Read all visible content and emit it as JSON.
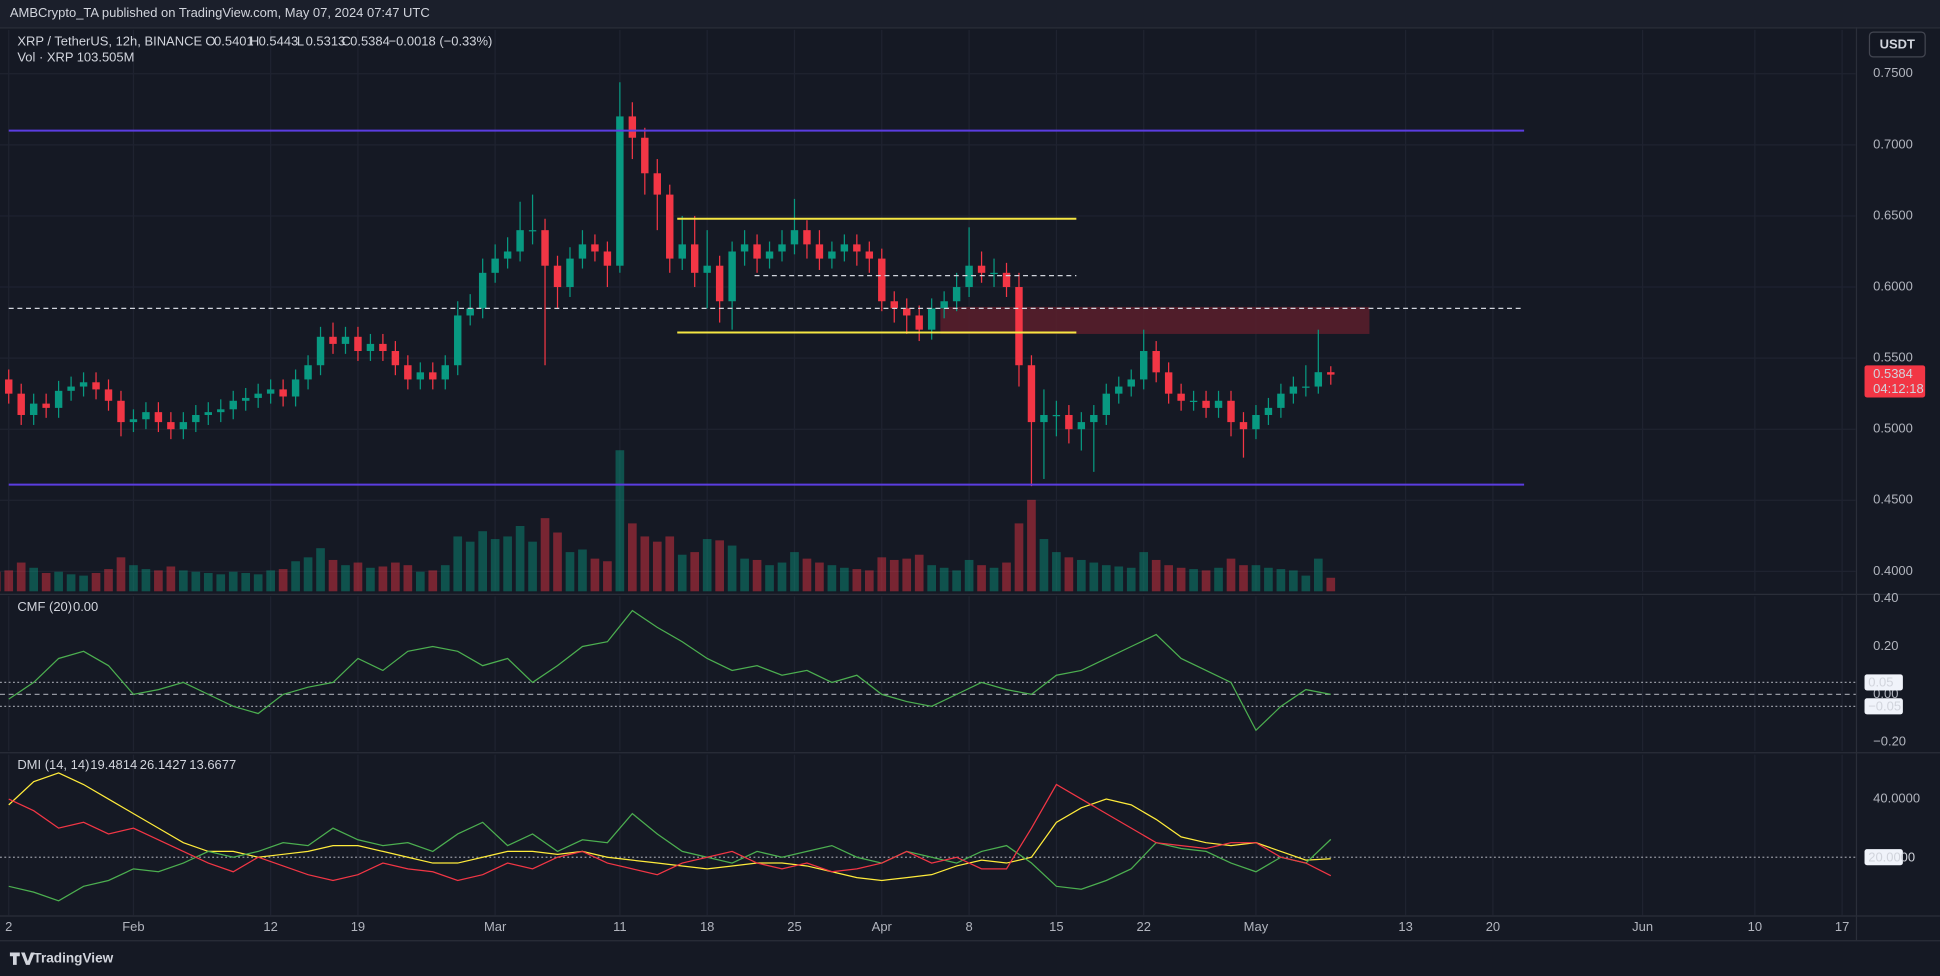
{
  "header": {
    "published": "AMBCrypto_TA published on TradingView.com, May 07, 2024 07:47 UTC",
    "currency": "USDT"
  },
  "footer": {
    "brand": "TradingView"
  },
  "chart_data": [
    {
      "type": "candlestick",
      "title": "XRP / TetherUS, 12h, BINANCE",
      "ohlc_labels": [
        "O",
        "H",
        "L",
        "C"
      ],
      "change_label": "−0.0018 (−0.33%)",
      "countdown": "04:12:18",
      "up_color": "#089981",
      "down_color": "#f23645",
      "x": [
        21,
        22,
        23,
        24,
        25,
        26,
        27,
        28,
        29,
        30,
        31,
        32,
        33,
        34,
        35,
        36,
        37,
        38,
        39,
        40,
        41,
        42,
        43,
        44,
        45,
        46,
        47,
        48,
        49,
        50,
        51,
        52,
        53,
        54,
        55,
        56,
        57,
        58,
        59,
        60,
        61,
        62,
        63,
        64,
        65,
        66,
        67,
        68,
        69,
        70,
        71,
        72,
        73,
        74,
        75,
        76,
        77,
        78,
        79,
        80,
        81,
        82,
        83,
        84,
        85,
        86,
        87,
        88,
        89,
        90,
        91,
        92,
        93,
        94,
        95,
        96,
        97,
        98,
        99,
        100,
        101,
        102,
        103,
        104,
        105,
        106,
        107,
        108,
        109,
        110,
        111,
        112,
        113,
        114,
        115,
        116,
        117,
        118,
        119,
        120,
        121,
        122,
        123,
        124,
        125,
        126,
        127,
        128
      ],
      "open": [
        0.54,
        0.535,
        0.525,
        0.51,
        0.518,
        0.515,
        0.527,
        0.53,
        0.533,
        0.528,
        0.52,
        0.505,
        0.507,
        0.512,
        0.505,
        0.5,
        0.505,
        0.51,
        0.512,
        0.514,
        0.52,
        0.522,
        0.525,
        0.528,
        0.523,
        0.535,
        0.545,
        0.565,
        0.56,
        0.565,
        0.555,
        0.56,
        0.555,
        0.545,
        0.535,
        0.54,
        0.535,
        0.545,
        0.58,
        0.585,
        0.61,
        0.62,
        0.625,
        0.64,
        0.64,
        0.615,
        0.6,
        0.62,
        0.63,
        0.625,
        0.615,
        0.72,
        0.705,
        0.68,
        0.665,
        0.62,
        0.63,
        0.61,
        0.615,
        0.59,
        0.625,
        0.63,
        0.62,
        0.625,
        0.63,
        0.64,
        0.63,
        0.62,
        0.625,
        0.63,
        0.625,
        0.62,
        0.59,
        0.585,
        0.58,
        0.57,
        0.585,
        0.59,
        0.6,
        0.615,
        0.61,
        0.61,
        0.6,
        0.545,
        0.505,
        0.51,
        0.51,
        0.5,
        0.505,
        0.51,
        0.525,
        0.53,
        0.535,
        0.555,
        0.54,
        0.525,
        0.52,
        0.52,
        0.515,
        0.52,
        0.505,
        0.5,
        0.51,
        0.515,
        0.525,
        0.53,
        0.53,
        0.5401
      ],
      "high": [
        0.547,
        0.542,
        0.532,
        0.525,
        0.525,
        0.534,
        0.537,
        0.54,
        0.54,
        0.535,
        0.527,
        0.514,
        0.519,
        0.519,
        0.512,
        0.512,
        0.517,
        0.519,
        0.521,
        0.527,
        0.529,
        0.532,
        0.535,
        0.535,
        0.542,
        0.552,
        0.572,
        0.575,
        0.572,
        0.572,
        0.567,
        0.567,
        0.562,
        0.552,
        0.547,
        0.547,
        0.552,
        0.59,
        0.595,
        0.62,
        0.63,
        0.635,
        0.66,
        0.665,
        0.648,
        0.622,
        0.628,
        0.64,
        0.637,
        0.632,
        0.744,
        0.73,
        0.712,
        0.69,
        0.672,
        0.65,
        0.65,
        0.64,
        0.622,
        0.632,
        0.64,
        0.637,
        0.632,
        0.64,
        0.662,
        0.647,
        0.64,
        0.632,
        0.637,
        0.637,
        0.632,
        0.627,
        0.597,
        0.592,
        0.587,
        0.592,
        0.597,
        0.61,
        0.642,
        0.625,
        0.62,
        0.617,
        0.61,
        0.552,
        0.528,
        0.52,
        0.517,
        0.512,
        0.517,
        0.532,
        0.537,
        0.542,
        0.57,
        0.562,
        0.547,
        0.532,
        0.527,
        0.527,
        0.527,
        0.527,
        0.512,
        0.517,
        0.522,
        0.532,
        0.537,
        0.545,
        0.57,
        0.5443
      ],
      "low": [
        0.528,
        0.518,
        0.503,
        0.503,
        0.508,
        0.508,
        0.52,
        0.523,
        0.521,
        0.513,
        0.495,
        0.498,
        0.5,
        0.498,
        0.493,
        0.493,
        0.498,
        0.503,
        0.505,
        0.507,
        0.513,
        0.515,
        0.518,
        0.516,
        0.516,
        0.528,
        0.538,
        0.553,
        0.553,
        0.548,
        0.548,
        0.548,
        0.538,
        0.528,
        0.528,
        0.528,
        0.528,
        0.538,
        0.573,
        0.578,
        0.603,
        0.613,
        0.618,
        0.63,
        0.545,
        0.585,
        0.593,
        0.613,
        0.618,
        0.6,
        0.61,
        0.69,
        0.665,
        0.64,
        0.61,
        0.612,
        0.6,
        0.585,
        0.575,
        0.57,
        0.615,
        0.61,
        0.613,
        0.618,
        0.623,
        0.62,
        0.612,
        0.613,
        0.618,
        0.615,
        0.61,
        0.583,
        0.575,
        0.567,
        0.562,
        0.563,
        0.578,
        0.583,
        0.593,
        0.603,
        0.6,
        0.593,
        0.53,
        0.46,
        0.465,
        0.495,
        0.49,
        0.485,
        0.47,
        0.503,
        0.518,
        0.523,
        0.528,
        0.533,
        0.518,
        0.513,
        0.513,
        0.508,
        0.508,
        0.495,
        0.48,
        0.493,
        0.503,
        0.508,
        0.518,
        0.523,
        0.525,
        0.5313
      ],
      "close": [
        0.535,
        0.525,
        0.51,
        0.518,
        0.515,
        0.527,
        0.53,
        0.533,
        0.528,
        0.52,
        0.505,
        0.507,
        0.512,
        0.505,
        0.5,
        0.505,
        0.51,
        0.512,
        0.514,
        0.52,
        0.522,
        0.525,
        0.528,
        0.523,
        0.535,
        0.545,
        0.565,
        0.56,
        0.565,
        0.555,
        0.56,
        0.555,
        0.545,
        0.535,
        0.54,
        0.535,
        0.545,
        0.58,
        0.585,
        0.61,
        0.62,
        0.625,
        0.64,
        0.64,
        0.615,
        0.6,
        0.62,
        0.63,
        0.625,
        0.615,
        0.72,
        0.705,
        0.68,
        0.665,
        0.62,
        0.63,
        0.61,
        0.615,
        0.59,
        0.625,
        0.63,
        0.62,
        0.625,
        0.63,
        0.64,
        0.63,
        0.62,
        0.625,
        0.63,
        0.625,
        0.62,
        0.59,
        0.585,
        0.58,
        0.57,
        0.585,
        0.59,
        0.6,
        0.615,
        0.61,
        0.61,
        0.6,
        0.545,
        0.505,
        0.51,
        0.51,
        0.5,
        0.505,
        0.51,
        0.525,
        0.53,
        0.535,
        0.555,
        0.54,
        0.525,
        0.52,
        0.52,
        0.515,
        0.52,
        0.505,
        0.5,
        0.51,
        0.515,
        0.525,
        0.53,
        0.53,
        0.5401,
        0.5384
      ],
      "volume": {
        "name": "Vol · XRP",
        "last_label": "103.505M",
        "ylim": [
          0,
          4300
        ],
        "values": [
          150,
          160,
          220,
          180,
          140,
          150,
          130,
          120,
          140,
          170,
          260,
          200,
          170,
          160,
          190,
          160,
          150,
          140,
          130,
          150,
          140,
          130,
          160,
          170,
          230,
          260,
          330,
          240,
          200,
          220,
          180,
          190,
          220,
          200,
          150,
          160,
          200,
          420,
          380,
          460,
          400,
          420,
          500,
          380,
          560,
          450,
          300,
          320,
          250,
          230,
          1080,
          520,
          420,
          380,
          420,
          280,
          300,
          400,
          390,
          350,
          250,
          240,
          200,
          220,
          300,
          250,
          220,
          200,
          180,
          170,
          160,
          260,
          240,
          250,
          280,
          200,
          180,
          160,
          240,
          200,
          180,
          220,
          520,
          700,
          400,
          300,
          260,
          240,
          220,
          200,
          190,
          180,
          300,
          240,
          200,
          180,
          170,
          160,
          180,
          250,
          200,
          200,
          180,
          170,
          160,
          120,
          250,
          103.505
        ]
      },
      "xlim": [
        21.3,
        170.1
      ],
      "xticks": [
        {
          "value": 22,
          "label": "2"
        },
        {
          "value": 32,
          "label": "Feb"
        },
        {
          "value": 43,
          "label": "12"
        },
        {
          "value": 50,
          "label": "19"
        },
        {
          "value": 61,
          "label": "Mar"
        },
        {
          "value": 71,
          "label": "11"
        },
        {
          "value": 78,
          "label": "18"
        },
        {
          "value": 85,
          "label": "25"
        },
        {
          "value": 92,
          "label": "Apr"
        },
        {
          "value": 99,
          "label": "8"
        },
        {
          "value": 106,
          "label": "15"
        },
        {
          "value": 113,
          "label": "22"
        },
        {
          "value": 122,
          "label": "May"
        },
        {
          "value": 134,
          "label": "13"
        },
        {
          "value": 141,
          "label": "20"
        },
        {
          "value": 153,
          "label": "Jun"
        },
        {
          "value": 162,
          "label": "10"
        },
        {
          "value": 169,
          "label": "17"
        }
      ],
      "ylim": [
        0.386,
        0.781
      ],
      "yticks": [
        {
          "value": 0.4,
          "label": "0.4000"
        },
        {
          "value": 0.45,
          "label": "0.4500"
        },
        {
          "value": 0.5,
          "label": "0.5000"
        },
        {
          "value": 0.55,
          "label": "0.5500"
        },
        {
          "value": 0.6,
          "label": "0.6000"
        },
        {
          "value": 0.65,
          "label": "0.6500"
        },
        {
          "value": 0.7,
          "label": "0.7000"
        },
        {
          "value": 0.75,
          "label": "0.7500"
        }
      ],
      "grid": true,
      "levels": [
        {
          "value": 0.71,
          "x": [
            22,
            143.5
          ],
          "color": "#5b3de0",
          "style": "solid"
        },
        {
          "value": 0.461,
          "x": [
            22,
            143.5
          ],
          "color": "#5b3de0",
          "style": "solid"
        },
        {
          "value": 0.648,
          "x": [
            75.6,
            107.6
          ],
          "color": "#f5e642",
          "style": "solid"
        },
        {
          "value": 0.568,
          "x": [
            75.6,
            107.6
          ],
          "color": "#f5e642",
          "style": "solid"
        },
        {
          "value": 0.608,
          "x": [
            81.8,
            107.6
          ],
          "color": "#d1d4dc",
          "style": "dashed"
        },
        {
          "value": 0.585,
          "x": [
            22,
            143.5
          ],
          "color": "#d1d4dc",
          "style": "dashed"
        }
      ],
      "zones": [
        {
          "range": [
            0.567,
            0.586
          ],
          "x": [
            96.7,
            131.1
          ],
          "color": "#5a1f2b"
        }
      ]
    },
    {
      "type": "line",
      "title": "CMF (20)",
      "last_label": "0.00",
      "x": [
        22,
        24,
        26,
        28,
        30,
        32,
        34,
        36,
        38,
        40,
        42,
        44,
        46,
        48,
        50,
        52,
        54,
        56,
        58,
        60,
        62,
        64,
        66,
        68,
        70,
        72,
        74,
        76,
        78,
        80,
        82,
        84,
        86,
        88,
        90,
        92,
        94,
        96,
        98,
        100,
        102,
        104,
        106,
        108,
        110,
        112,
        114,
        116,
        118,
        120,
        122,
        124,
        126,
        128
      ],
      "series": [
        {
          "color": "#4caf50",
          "values": [
            -0.02,
            0.05,
            0.15,
            0.18,
            0.12,
            0.0,
            0.02,
            0.05,
            0.0,
            -0.05,
            -0.08,
            0.0,
            0.03,
            0.05,
            0.15,
            0.1,
            0.18,
            0.2,
            0.18,
            0.12,
            0.15,
            0.05,
            0.12,
            0.2,
            0.22,
            0.35,
            0.28,
            0.22,
            0.15,
            0.1,
            0.12,
            0.08,
            0.1,
            0.05,
            0.08,
            0.0,
            -0.03,
            -0.05,
            0.0,
            0.05,
            0.02,
            0.0,
            0.08,
            0.1,
            0.15,
            0.2,
            0.25,
            0.15,
            0.1,
            0.05,
            -0.15,
            -0.05,
            0.02,
            0.0
          ]
        }
      ],
      "ylim": [
        -0.236,
        0.41
      ],
      "yticks": [
        {
          "value": 0.4,
          "label": "0.40"
        },
        {
          "value": 0.2,
          "label": "0.20"
        },
        {
          "value": 0,
          "label": "0.00"
        },
        {
          "value": -0.2,
          "label": "−0.20"
        }
      ],
      "levels": [
        {
          "value": 0.05,
          "label": "0.05",
          "style": "dotted"
        },
        {
          "value": 0,
          "style": "dashed"
        },
        {
          "value": -0.05,
          "label": "−0.05",
          "style": "dotted"
        }
      ]
    },
    {
      "type": "line",
      "title": "DMI (14, 14)",
      "x": [
        22,
        24,
        26,
        28,
        30,
        32,
        34,
        36,
        38,
        40,
        42,
        44,
        46,
        48,
        50,
        52,
        54,
        56,
        58,
        60,
        62,
        64,
        66,
        68,
        70,
        72,
        74,
        76,
        78,
        80,
        82,
        84,
        86,
        88,
        90,
        92,
        94,
        96,
        98,
        100,
        102,
        104,
        106,
        108,
        110,
        112,
        114,
        116,
        118,
        120,
        122,
        124,
        126,
        128
      ],
      "series": [
        {
          "color": "#ffeb3b",
          "values": [
            38,
            46,
            49,
            45,
            40,
            35,
            30,
            25,
            22,
            22,
            20,
            21,
            22,
            24,
            24,
            22,
            20,
            18,
            18,
            20,
            22,
            22,
            21,
            22,
            20,
            19,
            18,
            17,
            16,
            17,
            18,
            18,
            17,
            15,
            13,
            12,
            13,
            14,
            17,
            19,
            18,
            20,
            32,
            37,
            40,
            38,
            33,
            27,
            25,
            24,
            25,
            22,
            19,
            19.4814
          ]
        },
        {
          "color": "#4caf50",
          "values": [
            10,
            8,
            5,
            10,
            12,
            16,
            15,
            18,
            22,
            20,
            22,
            25,
            24,
            30,
            26,
            24,
            25,
            22,
            28,
            32,
            24,
            28,
            22,
            26,
            25,
            35,
            28,
            22,
            20,
            18,
            22,
            20,
            22,
            24,
            20,
            18,
            22,
            20,
            18,
            22,
            24,
            18,
            10,
            9,
            12,
            16,
            25,
            23,
            22,
            18,
            15,
            20,
            18,
            26.1427
          ]
        },
        {
          "color": "#f23645",
          "values": [
            40,
            36,
            30,
            32,
            28,
            30,
            26,
            22,
            18,
            15,
            20,
            17,
            14,
            12,
            14,
            18,
            16,
            15,
            12,
            14,
            18,
            16,
            20,
            22,
            18,
            16,
            14,
            18,
            20,
            22,
            18,
            16,
            18,
            15,
            16,
            18,
            22,
            18,
            20,
            16,
            16,
            30,
            45,
            40,
            35,
            30,
            25,
            24,
            23,
            25,
            25,
            20,
            18,
            13.6677
          ]
        }
      ],
      "ylim": [
        0,
        55.3
      ],
      "yticks": [
        {
          "value": 40,
          "label": "40.0000"
        }
      ],
      "levels": [
        {
          "value": 20,
          "label": "20.0000",
          "style": "dotted"
        }
      ]
    }
  ]
}
